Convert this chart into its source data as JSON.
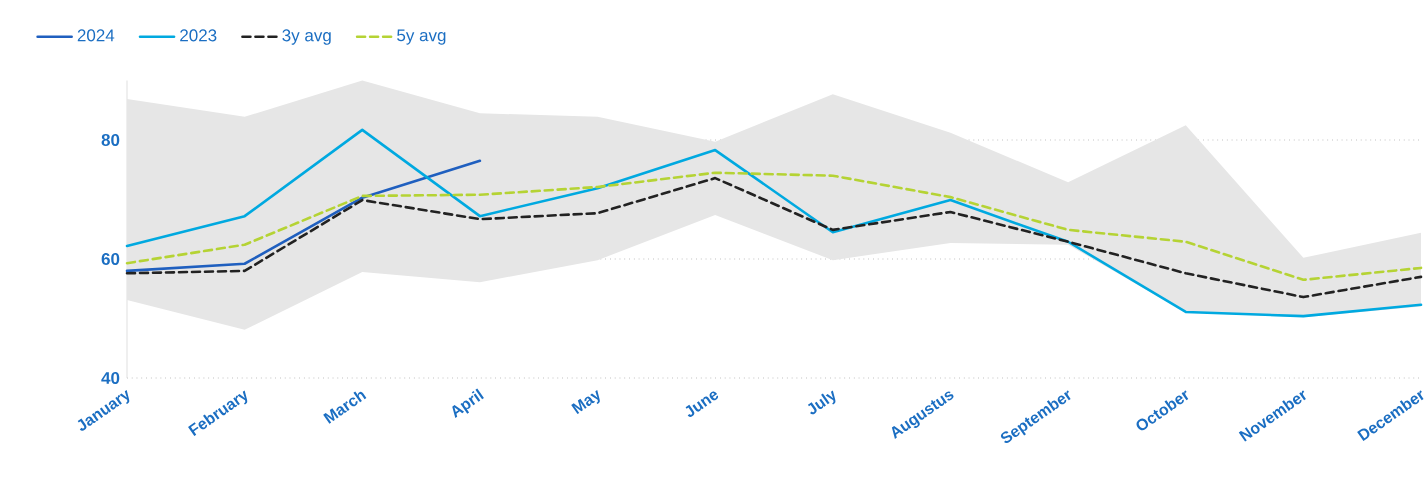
{
  "chart_data": {
    "type": "line",
    "categories": [
      "January",
      "February",
      "March",
      "April",
      "May",
      "June",
      "July",
      "Augustus",
      "September",
      "October",
      "November",
      "December"
    ],
    "series": [
      {
        "name": "2024",
        "color": "#1f5fbf",
        "line_style": "solid",
        "values": [
          58.0,
          59.2,
          70.3,
          76.5,
          null,
          null,
          null,
          null,
          null,
          null,
          null,
          null
        ]
      },
      {
        "name": "2023",
        "color": "#00a9e0",
        "line_style": "solid",
        "values": [
          62.2,
          67.2,
          81.7,
          67.2,
          71.9,
          78.3,
          64.5,
          69.9,
          62.9,
          51.1,
          50.4,
          52.3
        ]
      },
      {
        "name": "3y avg",
        "color": "#222222",
        "line_style": "dashed",
        "values": [
          57.6,
          58.0,
          69.9,
          66.7,
          67.7,
          73.6,
          64.9,
          67.9,
          62.9,
          57.6,
          53.6,
          57.0
        ]
      },
      {
        "name": "5y avg",
        "color": "#b5d334",
        "line_style": "dashed",
        "values": [
          59.3,
          62.4,
          70.6,
          70.8,
          72.1,
          74.5,
          74.0,
          70.4,
          64.9,
          62.9,
          56.5,
          58.5
        ],
        "lower": [
          53.1,
          48.1,
          57.8,
          56.1,
          59.8,
          67.4,
          59.8,
          62.7,
          62.4,
          51.0,
          50.2,
          52.0
        ],
        "upper": [
          86.9,
          83.9,
          90.0,
          84.5,
          83.9,
          79.7,
          87.7,
          81.2,
          72.9,
          82.5,
          60.2,
          64.4
        ]
      }
    ],
    "ylim": [
      40,
      90
    ],
    "yticks": [
      40,
      60,
      80
    ],
    "grid": "y",
    "legend": "top left",
    "marker": "none"
  }
}
